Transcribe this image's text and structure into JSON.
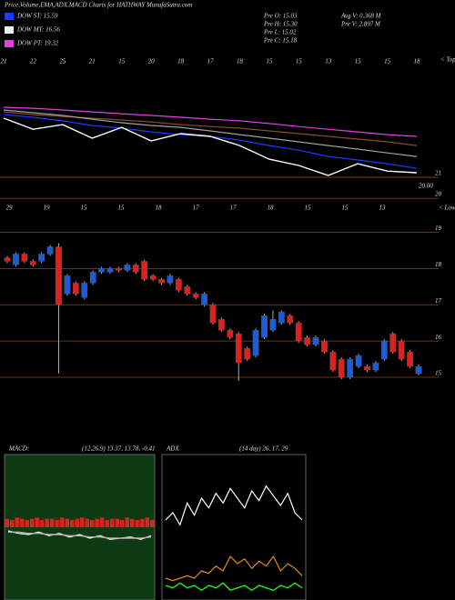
{
  "header": {
    "title": "Price,Volume,EMA,ADX,MACD Charts for HATHWAY MunafaSutra.com",
    "legend": [
      {
        "label": "DOW ST: 15.59",
        "color": "#1a3cff"
      },
      {
        "label": "DOW MT: 16.56",
        "color": "#f0f0f0"
      },
      {
        "label": "DOW PT: 19.32",
        "color": "#e040e0"
      }
    ],
    "info_left": [
      "Pre  O: 15.03",
      "Pre  H: 15.30",
      "Pre  L: 15.02",
      "Pre  C: 15.18"
    ],
    "info_right": [
      "Avg V: 0.368  M",
      "Pre  V: 2.897 M"
    ]
  },
  "chart_data": [
    {
      "type": "line",
      "categories": [
        "21",
        "22",
        "25",
        "21",
        "15",
        "20",
        "18",
        "17",
        "18",
        "15",
        "15",
        "13",
        "15",
        "15",
        "18"
      ],
      "annotations": [
        "< Tops",
        "20.00"
      ],
      "ylim": [
        19.83,
        26.87
      ],
      "yticks": [
        21,
        20
      ],
      "grid": true,
      "series": [
        {
          "color": "#e040e0",
          "values": [
            24.35,
            24.3,
            24.22,
            24.13,
            24.04,
            23.96,
            23.87,
            23.78,
            23.7,
            23.57,
            23.43,
            23.3,
            23.17,
            23.04,
            22.96
          ]
        },
        {
          "color": "#8b4a2b",
          "values": [
            24.13,
            24.0,
            23.91,
            23.83,
            23.74,
            23.65,
            23.52,
            23.43,
            23.35,
            23.22,
            23.09,
            22.96,
            22.83,
            22.7,
            22.52
          ]
        },
        {
          "color": "#a0a0a0",
          "values": [
            24.22,
            24.09,
            23.96,
            23.78,
            23.61,
            23.48,
            23.39,
            23.22,
            23.04,
            22.87,
            22.7,
            22.52,
            22.35,
            22.17,
            22.0
          ]
        },
        {
          "color": "#1a3cff",
          "values": [
            24.0,
            23.87,
            23.7,
            23.48,
            23.35,
            23.17,
            23.04,
            22.96,
            22.78,
            22.52,
            22.3,
            22.0,
            21.83,
            21.65,
            21.43
          ]
        },
        {
          "color": "#ffffff",
          "values": [
            23.83,
            23.3,
            23.52,
            22.87,
            23.39,
            22.74,
            23.09,
            22.96,
            22.52,
            21.87,
            21.57,
            21.09,
            21.65,
            21.3,
            21.22
          ]
        }
      ]
    },
    {
      "type": "candlestick",
      "date_labels": [
        "29",
        "19",
        "15",
        "15",
        "18",
        "17",
        "17",
        "18",
        "15",
        "15",
        "13"
      ],
      "annotations": [
        "< Lows"
      ],
      "ylim": [
        13.12,
        19.84
      ],
      "yticks": [
        19,
        18,
        17,
        16,
        15
      ],
      "grid": true,
      "up_color": "#1e5bd7",
      "down_color": "#e0201c",
      "open": [
        18.3,
        18.1,
        18.4,
        18.2,
        18.2,
        18.4,
        18.6,
        17.3,
        17.6,
        17.2,
        17.6,
        17.9,
        17.9,
        18.0,
        17.95,
        18.1,
        18.2,
        17.8,
        17.7,
        17.6,
        17.7,
        17.5,
        17.3,
        17.0,
        17.0,
        16.6,
        16.3,
        16.2,
        15.8,
        15.6,
        16.1,
        16.3,
        16.5,
        16.7,
        16.5,
        16.1,
        15.9,
        16.0,
        15.7,
        15.5,
        15.0,
        15.3,
        15.3,
        15.2,
        15.5,
        16.2,
        16.0,
        15.7,
        15.1
      ],
      "close": [
        18.2,
        18.4,
        18.2,
        18.1,
        18.4,
        18.6,
        17.0,
        17.8,
        17.3,
        17.6,
        17.9,
        18.0,
        18.0,
        17.95,
        18.1,
        17.9,
        17.7,
        17.7,
        17.6,
        17.8,
        17.4,
        17.3,
        17.2,
        17.3,
        16.5,
        16.3,
        16.1,
        15.4,
        15.5,
        16.3,
        16.7,
        16.6,
        16.8,
        16.5,
        16.0,
        15.9,
        16.1,
        15.7,
        15.2,
        15.0,
        15.5,
        15.6,
        15.2,
        15.4,
        16.0,
        15.7,
        15.5,
        15.3,
        15.3
      ],
      "high": [
        18.35,
        18.45,
        18.45,
        18.25,
        18.45,
        18.65,
        18.7,
        17.85,
        17.65,
        17.65,
        17.95,
        18.05,
        18.05,
        18.05,
        18.15,
        18.15,
        18.25,
        17.85,
        17.75,
        17.85,
        17.75,
        17.55,
        17.35,
        17.35,
        17.05,
        16.65,
        16.35,
        16.25,
        15.85,
        16.35,
        16.75,
        16.85,
        16.85,
        16.75,
        16.55,
        16.15,
        16.15,
        16.05,
        15.75,
        15.55,
        15.55,
        15.65,
        15.35,
        15.45,
        16.05,
        16.25,
        16.05,
        15.75,
        15.35
      ],
      "low": [
        18.15,
        18.05,
        18.15,
        18.05,
        18.15,
        18.35,
        15.1,
        17.25,
        17.25,
        17.15,
        17.55,
        17.85,
        17.85,
        17.9,
        17.9,
        17.85,
        17.65,
        17.65,
        17.55,
        17.55,
        17.35,
        17.25,
        17.15,
        16.95,
        16.45,
        16.25,
        16.05,
        14.9,
        15.45,
        15.55,
        16.05,
        16.25,
        16.45,
        16.45,
        15.95,
        15.85,
        15.85,
        15.65,
        15.15,
        14.95,
        14.95,
        15.25,
        15.15,
        15.15,
        15.45,
        15.65,
        15.45,
        15.25,
        15.05
      ]
    },
    {
      "type": "macd",
      "title": "MACD:",
      "subtitle": "(12,26,9) 13.37,  13.78, -0.41",
      "ylim": [
        -6,
        6
      ],
      "background": "#0d3a12",
      "histogram": {
        "color": "#e0201c",
        "values": [
          0.7,
          0.6,
          0.8,
          0.7,
          0.6,
          0.7,
          0.8,
          0.6,
          0.7,
          0.7,
          0.6,
          0.8,
          0.7,
          0.6,
          0.7,
          0.8,
          0.7,
          0.6,
          0.7,
          0.8,
          0.6,
          0.7,
          0.7,
          0.6,
          0.8,
          0.7,
          0.6,
          0.7,
          0.8,
          0.6
        ]
      },
      "series": [
        {
          "color": "#ffffff",
          "values": [
            -0.3,
            -0.5,
            -0.6,
            -0.4,
            -0.7,
            -0.5,
            -0.8,
            -0.6,
            -0.9,
            -0.7,
            -1.0,
            -0.9,
            -0.8,
            -1.0,
            -0.7
          ]
        },
        {
          "color": "#b0b0b0",
          "values": [
            -0.4,
            -0.4,
            -0.5,
            -0.5,
            -0.6,
            -0.6,
            -0.7,
            -0.7,
            -0.8,
            -0.8,
            -0.9,
            -0.9,
            -0.9,
            -0.9,
            -0.8
          ]
        }
      ]
    },
    {
      "type": "line",
      "title": "ADX",
      "subtitle": "(14 day) 26, 17, 29",
      "ylim": [
        0,
        60
      ],
      "background": "#000000",
      "series": [
        {
          "color": "#ffffff",
          "values": [
            33,
            36,
            31,
            40,
            35,
            42,
            38,
            44,
            40,
            46,
            42,
            38,
            45,
            41,
            47,
            43,
            39,
            44,
            36,
            33
          ]
        },
        {
          "color": "#e08a20",
          "values": [
            9,
            8,
            9,
            10,
            9,
            12,
            11,
            14,
            12,
            18,
            15,
            17,
            13,
            16,
            14,
            18,
            12,
            15,
            13,
            10
          ]
        },
        {
          "color": "#22ee22",
          "values": [
            6,
            5,
            7,
            5,
            6,
            4,
            6,
            5,
            7,
            4,
            5,
            6,
            4,
            6,
            5,
            4,
            6,
            5,
            7,
            5
          ]
        }
      ]
    }
  ]
}
